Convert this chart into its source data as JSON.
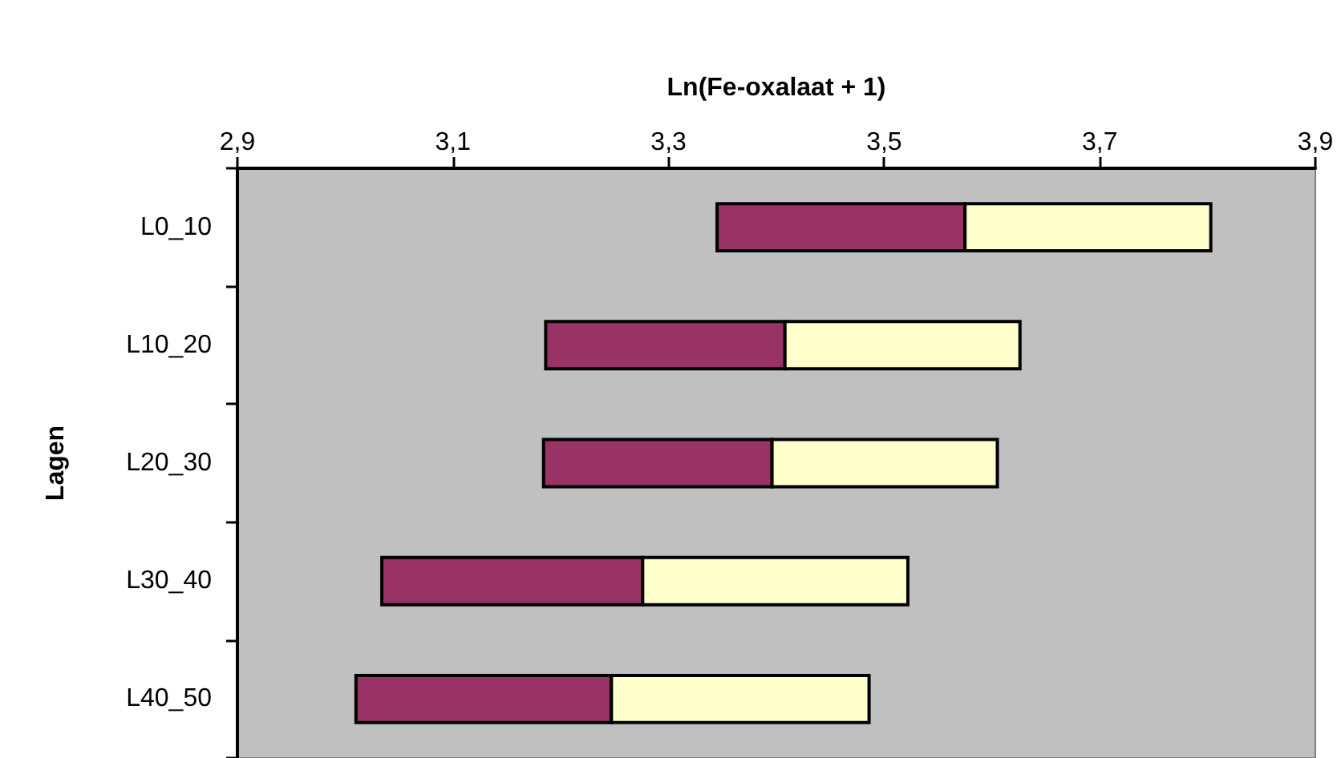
{
  "chart_data": {
    "type": "bar",
    "orientation": "horizontal",
    "xlabel": "Ln(Fe-oxalaat + 1)",
    "ylabel": "Lagen",
    "categories": [
      "L0_10",
      "L10_20",
      "L20_30",
      "L30_40",
      "L40_50"
    ],
    "series": [
      {
        "color": "#993366",
        "base": [
          3.345,
          3.186,
          3.184,
          3.034,
          3.01
        ],
        "values": [
          0.23,
          0.222,
          0.212,
          0.242,
          0.237
        ]
      },
      {
        "color": "#ffffcc",
        "base": [
          3.575,
          3.408,
          3.396,
          3.276,
          3.247
        ],
        "values": [
          0.228,
          0.218,
          0.209,
          0.246,
          0.239
        ]
      }
    ],
    "xlim": [
      2.9,
      3.9
    ],
    "xticks": [
      {
        "value": 2.9,
        "label": "2,9"
      },
      {
        "value": 3.1,
        "label": "3,1"
      },
      {
        "value": 3.3,
        "label": "3,3"
      },
      {
        "value": 3.5,
        "label": "3,5"
      },
      {
        "value": 3.7,
        "label": "3,7"
      },
      {
        "value": 3.9,
        "label": "3,9"
      }
    ],
    "grid": false
  }
}
